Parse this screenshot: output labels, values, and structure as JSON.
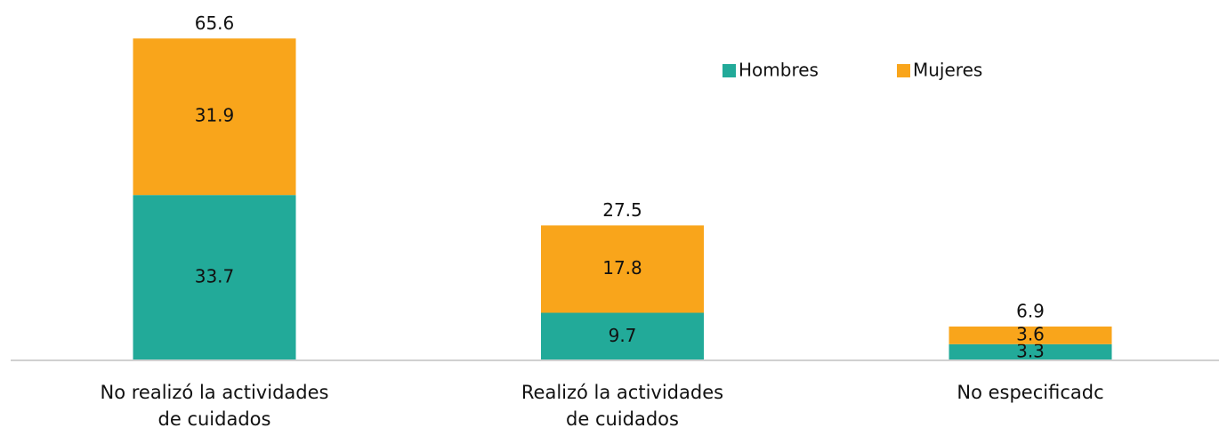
{
  "chart_data": {
    "type": "stacked_bar",
    "categories": [
      "No realizó la actividades\nde cuidados",
      "Realizó la actividades\nde cuidados",
      "No especificadc"
    ],
    "series": [
      {
        "name": "Hombres",
        "color": "#22aa99",
        "values": [
          33.7,
          9.7,
          3.3
        ]
      },
      {
        "name": "Mujeres",
        "color": "#f9a51b",
        "values": [
          31.9,
          17.8,
          3.6
        ]
      }
    ],
    "totals": [
      65.6,
      27.5,
      6.9
    ],
    "ylim": [
      0,
      70
    ],
    "legend": "top-right"
  }
}
